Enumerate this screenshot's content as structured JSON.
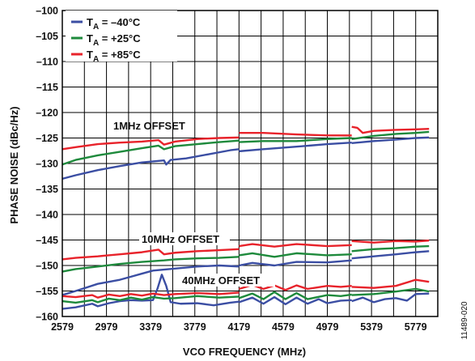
{
  "chart_data": {
    "type": "line",
    "xlabel": "VCO FREQUENCY (MHz)",
    "ylabel": "PHASE NOISE (dBc/Hz)",
    "xlim": [
      2579,
      5979
    ],
    "ylim": [
      -160,
      -100
    ],
    "x_ticks": [
      "2579",
      "2979",
      "3379",
      "3779",
      "4179",
      "4579",
      "4979",
      "5379",
      "5779"
    ],
    "y_ticks": [
      "–100",
      "–105",
      "–110",
      "–115",
      "–120",
      "–125",
      "–130",
      "–135",
      "–140",
      "–145",
      "–150",
      "–155",
      "–160"
    ],
    "grid": true,
    "legend_position": "top-left",
    "legend": [
      {
        "main": "T",
        "sub": "A",
        "rest": " = –40°C",
        "color": "#3b4ea3"
      },
      {
        "main": "T",
        "sub": "A",
        "rest": " = +25°C",
        "color": "#1e8a3c"
      },
      {
        "main": "T",
        "sub": "A",
        "rest": " = +85°C",
        "color": "#e8232b"
      }
    ],
    "annotations": [
      "1MHz OFFSET",
      "10MHz OFFSET",
      "40MHz OFFSET"
    ],
    "figure_id": "11489-020",
    "series": [
      {
        "group": "1MHz OFFSET",
        "temp": "–40°C",
        "color": "#3b4ea3",
        "segments": [
          {
            "x": [
              2579,
              2700,
              2900,
              3100,
              3300,
              3500,
              3520,
              3560,
              3700,
              3900,
              4100,
              4179
            ],
            "y": [
              -133,
              -132.3,
              -131.3,
              -130.5,
              -129.8,
              -129.4,
              -130.2,
              -129.3,
              -129.0,
              -128.2,
              -127.4,
              -127.2
            ]
          },
          {
            "x": [
              4179,
              4400,
              4700,
              4979,
              5200
            ],
            "y": [
              -127.6,
              -127.2,
              -126.7,
              -126.2,
              -125.9
            ]
          },
          {
            "x": [
              5200,
              5400,
              5600,
              5779,
              5900
            ],
            "y": [
              -126.0,
              -125.6,
              -125.3,
              -125.0,
              -124.9
            ]
          }
        ]
      },
      {
        "group": "1MHz OFFSET",
        "temp": "+25°C",
        "color": "#1e8a3c",
        "segments": [
          {
            "x": [
              2579,
              2700,
              2900,
              3100,
              3300,
              3450,
              3500,
              3600,
              3800,
              4000,
              4179
            ],
            "y": [
              -130.2,
              -129.3,
              -128.4,
              -127.7,
              -127.0,
              -126.5,
              -127.2,
              -126.6,
              -126.2,
              -125.8,
              -125.5
            ]
          },
          {
            "x": [
              4179,
              4400,
              4700,
              4979,
              5200
            ],
            "y": [
              -125.8,
              -125.6,
              -125.6,
              -125.2,
              -125.0
            ]
          },
          {
            "x": [
              5200,
              5400,
              5600,
              5779,
              5900
            ],
            "y": [
              -125.2,
              -124.6,
              -124.2,
              -124.0,
              -123.8
            ]
          }
        ]
      },
      {
        "group": "1MHz OFFSET",
        "temp": "+85°C",
        "color": "#e8232b",
        "segments": [
          {
            "x": [
              2579,
              2700,
              2900,
              3100,
              3300,
              3450,
              3500,
              3600,
              3800,
              4000,
              4179
            ],
            "y": [
              -127.2,
              -126.8,
              -126.2,
              -125.9,
              -125.7,
              -125.4,
              -126.3,
              -125.7,
              -125.2,
              -125.0,
              -124.9
            ]
          },
          {
            "x": [
              4179,
              4400,
              4700,
              4979,
              5200
            ],
            "y": [
              -124.0,
              -124.0,
              -124.3,
              -124.5,
              -124.5
            ]
          },
          {
            "x": [
              5200,
              5250,
              5300,
              5400,
              5600,
              5779,
              5900
            ],
            "y": [
              -122.8,
              -123.0,
              -124.0,
              -123.6,
              -123.4,
              -123.3,
              -123.2
            ]
          }
        ]
      },
      {
        "group": "10MHz OFFSET",
        "temp": "–40°C",
        "color": "#3b4ea3",
        "segments": [
          {
            "x": [
              2579,
              2700,
              2800,
              2900,
              3000,
              3100,
              3200,
              3300,
              3400,
              3600,
              3800,
              4000,
              4179
            ],
            "y": [
              -155.8,
              -155.0,
              -154.3,
              -153.6,
              -153.2,
              -152.8,
              -152.2,
              -151.6,
              -151.0,
              -150.6,
              -150.2,
              -150.0,
              -150.2
            ]
          },
          {
            "x": [
              4179,
              4300,
              4500,
              4700,
              4979,
              5200
            ],
            "y": [
              -150.0,
              -149.5,
              -150.0,
              -149.3,
              -149.4,
              -149.0
            ]
          },
          {
            "x": [
              5200,
              5400,
              5600,
              5779,
              5900
            ],
            "y": [
              -148.6,
              -148.2,
              -147.8,
              -147.4,
              -147.2
            ]
          }
        ]
      },
      {
        "group": "10MHz OFFSET",
        "temp": "+25°C",
        "color": "#1e8a3c",
        "segments": [
          {
            "x": [
              2579,
              2700,
              2900,
              3100,
              3300,
              3500,
              3600,
              3800,
              4000,
              4179
            ],
            "y": [
              -151.2,
              -150.7,
              -150.2,
              -149.7,
              -149.3,
              -149.0,
              -148.8,
              -148.6,
              -148.5,
              -148.3
            ]
          },
          {
            "x": [
              4179,
              4300,
              4500,
              4700,
              4979,
              5200
            ],
            "y": [
              -148.0,
              -147.6,
              -148.3,
              -147.6,
              -148.0,
              -147.8
            ]
          },
          {
            "x": [
              5200,
              5400,
              5600,
              5779,
              5900
            ],
            "y": [
              -147.2,
              -146.8,
              -146.6,
              -146.3,
              -146.2
            ]
          }
        ]
      },
      {
        "group": "10MHz OFFSET",
        "temp": "+85°C",
        "color": "#e8232b",
        "segments": [
          {
            "x": [
              2579,
              2700,
              2900,
              3100,
              3300,
              3450,
              3500,
              3600,
              3800,
              4000,
              4179
            ],
            "y": [
              -148.8,
              -148.5,
              -148.2,
              -147.8,
              -147.4,
              -146.9,
              -147.8,
              -147.5,
              -147.2,
              -147.0,
              -146.8
            ]
          },
          {
            "x": [
              4179,
              4300,
              4500,
              4700,
              4979,
              5200
            ],
            "y": [
              -146.2,
              -145.8,
              -146.3,
              -145.8,
              -146.2,
              -146.0
            ]
          },
          {
            "x": [
              5200,
              5400,
              5600,
              5779,
              5900
            ],
            "y": [
              -145.2,
              -145.5,
              -145.2,
              -145.3,
              -145.1
            ]
          }
        ]
      },
      {
        "group": "40MHz OFFSET",
        "temp": "–40°C",
        "color": "#3b4ea3",
        "segments": [
          {
            "x": [
              2579,
              2700,
              2850,
              2900,
              3000,
              3100,
              3200,
              3300,
              3400,
              3440,
              3480,
              3520,
              3560,
              3650,
              3800,
              3950,
              4100,
              4179
            ],
            "y": [
              -158.5,
              -158.2,
              -157.5,
              -158.0,
              -157.4,
              -157.0,
              -156.8,
              -156.9,
              -156.8,
              -154.6,
              -151.8,
              -154.0,
              -157.2,
              -157.5,
              -157.4,
              -157.8,
              -157.3,
              -157.1
            ]
          },
          {
            "x": [
              4179,
              4300,
              4400,
              4500,
              4600,
              4700,
              4800,
              4900,
              4979,
              5100,
              5200
            ],
            "y": [
              -157.2,
              -156.3,
              -157.5,
              -156.2,
              -157.6,
              -156.3,
              -157.5,
              -156.6,
              -157.4,
              -156.9,
              -156.8
            ]
          },
          {
            "x": [
              5200,
              5300,
              5400,
              5500,
              5600,
              5700,
              5779,
              5900
            ],
            "y": [
              -157.0,
              -156.3,
              -157.2,
              -156.6,
              -156.4,
              -156.9,
              -155.6,
              -155.5
            ]
          }
        ]
      },
      {
        "group": "40MHz OFFSET",
        "temp": "+25°C",
        "color": "#1e8a3c",
        "segments": [
          {
            "x": [
              2579,
              2700,
              2850,
              2900,
              3000,
              3100,
              3200,
              3300,
              3400,
              3500,
              3600,
              3800,
              4000,
              4179
            ],
            "y": [
              -157.0,
              -157.3,
              -156.8,
              -157.2,
              -156.5,
              -156.8,
              -156.3,
              -156.7,
              -156.2,
              -156.5,
              -156.4,
              -156.0,
              -156.3,
              -156.1
            ]
          },
          {
            "x": [
              4179,
              4300,
              4400,
              4500,
              4600,
              4700,
              4800,
              4979,
              5100,
              5200
            ],
            "y": [
              -156.4,
              -155.5,
              -156.6,
              -155.2,
              -156.6,
              -155.4,
              -156.6,
              -155.8,
              -156.0,
              -155.7
            ]
          },
          {
            "x": [
              5200,
              5400,
              5600,
              5779,
              5900
            ],
            "y": [
              -155.8,
              -155.6,
              -155.1,
              -154.6,
              -155.1
            ]
          }
        ]
      },
      {
        "group": "40MHz OFFSET",
        "temp": "+85°C",
        "color": "#e8232b",
        "segments": [
          {
            "x": [
              2579,
              2700,
              2850,
              2900,
              3000,
              3100,
              3200,
              3300,
              3400,
              3500,
              3600,
              3800,
              4000,
              4179
            ],
            "y": [
              -156.0,
              -156.2,
              -155.8,
              -156.3,
              -155.7,
              -156.0,
              -155.6,
              -155.9,
              -155.5,
              -155.8,
              -155.6,
              -155.4,
              -155.6,
              -155.3
            ]
          },
          {
            "x": [
              4179,
              4300,
              4400,
              4500,
              4600,
              4700,
              4800,
              4979,
              5100,
              5200
            ],
            "y": [
              -154.6,
              -153.8,
              -154.6,
              -153.9,
              -154.8,
              -153.9,
              -154.6,
              -154.0,
              -154.2,
              -154.0
            ]
          },
          {
            "x": [
              5200,
              5400,
              5600,
              5779,
              5900
            ],
            "y": [
              -154.2,
              -154.4,
              -154.0,
              -152.8,
              -153.2
            ]
          }
        ]
      }
    ]
  }
}
